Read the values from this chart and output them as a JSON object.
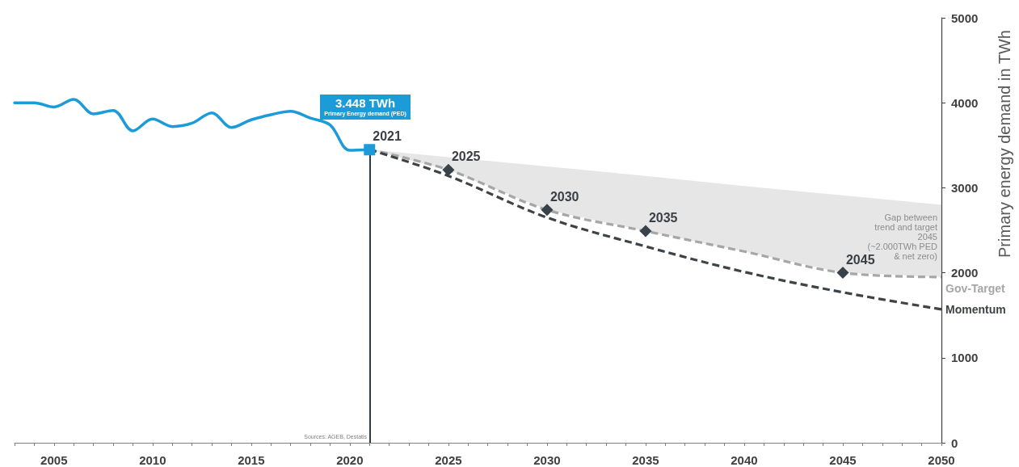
{
  "chart_data": {
    "type": "line",
    "ylabel": "Primary energy demand in TWh",
    "xlim": [
      2003,
      2050
    ],
    "xticks": [
      {
        "value": 2003,
        "label": null
      },
      {
        "value": 2004,
        "label": null
      },
      2005,
      {
        "value": 2006,
        "label": null
      },
      {
        "value": 2007,
        "label": null
      },
      {
        "value": 2008,
        "label": null
      },
      {
        "value": 2009,
        "label": null
      },
      2010,
      {
        "value": 2011,
        "label": null
      },
      {
        "value": 2012,
        "label": null
      },
      {
        "value": 2013,
        "label": null
      },
      {
        "value": 2014,
        "label": null
      },
      2015,
      {
        "value": 2016,
        "label": null
      },
      {
        "value": 2017,
        "label": null
      },
      {
        "value": 2018,
        "label": null
      },
      {
        "value": 2019,
        "label": null
      },
      2020,
      {
        "value": 2021,
        "label": null
      },
      {
        "value": 2022,
        "label": null
      },
      {
        "value": 2023,
        "label": null
      },
      {
        "value": 2024,
        "label": null
      },
      2025,
      {
        "value": 2026,
        "label": null
      },
      {
        "value": 2027,
        "label": null
      },
      {
        "value": 2028,
        "label": null
      },
      {
        "value": 2029,
        "label": null
      },
      2030,
      {
        "value": 2031,
        "label": null
      },
      {
        "value": 2032,
        "label": null
      },
      {
        "value": 2033,
        "label": null
      },
      {
        "value": 2034,
        "label": null
      },
      2035,
      {
        "value": 2036,
        "label": null
      },
      {
        "value": 2037,
        "label": null
      },
      {
        "value": 2038,
        "label": null
      },
      {
        "value": 2039,
        "label": null
      },
      2040,
      {
        "value": 2041,
        "label": null
      },
      {
        "value": 2042,
        "label": null
      },
      {
        "value": 2043,
        "label": null
      },
      {
        "value": 2044,
        "label": null
      },
      2045,
      {
        "value": 2046,
        "label": null
      },
      {
        "value": 2047,
        "label": null
      },
      {
        "value": 2048,
        "label": null
      },
      {
        "value": 2049,
        "label": null
      },
      2050
    ],
    "ylim": [
      0,
      5000
    ],
    "yticks": [
      0,
      1000,
      2000,
      3000,
      4000,
      5000
    ],
    "series": [
      {
        "color": "#1b9bd7",
        "line_style": "solid",
        "marker": "none",
        "x": [
          2003,
          2004,
          2005,
          2006,
          2007,
          2008,
          2009,
          2010,
          2011,
          2012,
          2013,
          2014,
          2015,
          2016,
          2017,
          2018,
          2019,
          2020,
          2021
        ],
        "values": [
          4000,
          4000,
          3950,
          4040,
          3870,
          3910,
          3670,
          3810,
          3720,
          3760,
          3880,
          3710,
          3800,
          3860,
          3900,
          3820,
          3740,
          3440,
          3450
        ]
      },
      {
        "name": "Gov-Target",
        "color": "#a6a6a6",
        "line_style": "dashed",
        "marker": "none",
        "x": [
          2021,
          2025,
          2030,
          2035,
          2040,
          2045,
          2050
        ],
        "values": [
          3450,
          3210,
          2740,
          2490,
          2250,
          2000,
          1950
        ],
        "lower": [
          3450,
          3210,
          2740,
          2490,
          2250,
          2000,
          1950
        ],
        "upper": [
          3450,
          3360,
          3250,
          3140,
          3020,
          2910,
          2800
        ]
      },
      {
        "name": "Momentum",
        "color": "#3d4347",
        "line_style": "dashed",
        "marker": "none",
        "x": [
          2021,
          2025,
          2030,
          2035,
          2040,
          2045,
          2050
        ],
        "values": [
          3450,
          3140,
          2650,
          2310,
          2010,
          1770,
          1570
        ]
      },
      {
        "type": "scatter",
        "marker": "diamond",
        "color": "#37424a",
        "x": [
          2025,
          2030,
          2035,
          2045
        ],
        "values": [
          3210,
          2740,
          2490,
          2000
        ]
      },
      {
        "type": "scatter",
        "marker": "square",
        "color": "#1b9bd7",
        "x": [
          2021
        ],
        "values": [
          3448
        ]
      }
    ],
    "ref_lines": [
      {
        "axis": "x",
        "value": 2021,
        "color": "#2f3b44"
      }
    ],
    "annotations": [
      "3.448 TWh",
      "Primary Energy demand (PED)",
      {
        "text": "2021",
        "x": 2021,
        "y": 3448
      },
      {
        "text": "2025",
        "x": 2025,
        "y": 3210
      },
      {
        "text": "2030",
        "x": 2030,
        "y": 2740
      },
      {
        "text": "2035",
        "x": 2035,
        "y": 2490
      },
      {
        "text": "2045",
        "x": 2045,
        "y": 2000
      },
      "Gap between trend and target 2045 (~2.000TWh PED & net zero)",
      "Sources: AGEB, Destatis"
    ]
  }
}
